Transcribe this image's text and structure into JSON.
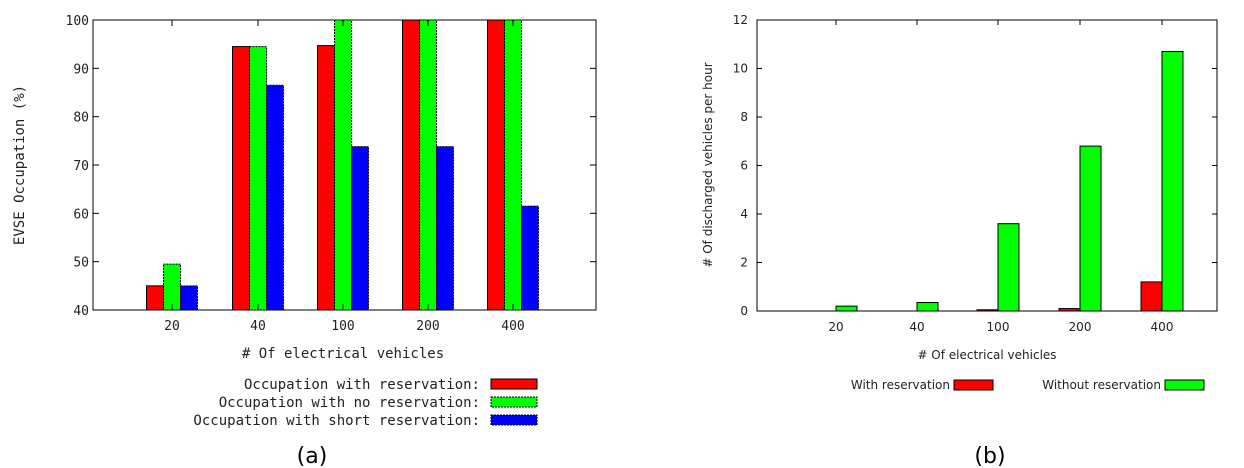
{
  "chart_data": [
    {
      "type": "bar",
      "caption": "(a)",
      "xlabel": "# Of electrical vehicles",
      "ylabel": "EVSE Occupation (%)",
      "ylim": [
        40,
        100
      ],
      "yticks": [
        40,
        50,
        60,
        70,
        80,
        90,
        100
      ],
      "categories": [
        "20",
        "40",
        "100",
        "200",
        "400"
      ],
      "legend_position": "bottom",
      "series": [
        {
          "name": "Occupation with reservation",
          "values": [
            45,
            94.5,
            94.7,
            100,
            100
          ],
          "color": "#ff0000"
        },
        {
          "name": "Occupation with no reservation",
          "values": [
            49.5,
            94.5,
            100,
            100,
            100
          ],
          "color": "#00ff00"
        },
        {
          "name": "Occupation with short reservation",
          "values": [
            45,
            86.5,
            73.8,
            73.8,
            61.5
          ],
          "color": "#0000ff"
        }
      ]
    },
    {
      "type": "bar",
      "caption": "(b)",
      "xlabel": "# Of electrical vehicles",
      "ylabel": "# Of discharged vehicles per hour",
      "ylim": [
        0,
        12
      ],
      "yticks": [
        0,
        2,
        4,
        6,
        8,
        10,
        12
      ],
      "categories": [
        "20",
        "40",
        "100",
        "200",
        "400"
      ],
      "legend_position": "bottom",
      "series": [
        {
          "name": "With reservation",
          "values": [
            0,
            0,
            0.05,
            0.1,
            1.2
          ],
          "color": "#ff0000"
        },
        {
          "name": "Without reservation",
          "values": [
            0.2,
            0.35,
            3.6,
            6.8,
            10.7
          ],
          "color": "#00ff00"
        }
      ]
    }
  ]
}
